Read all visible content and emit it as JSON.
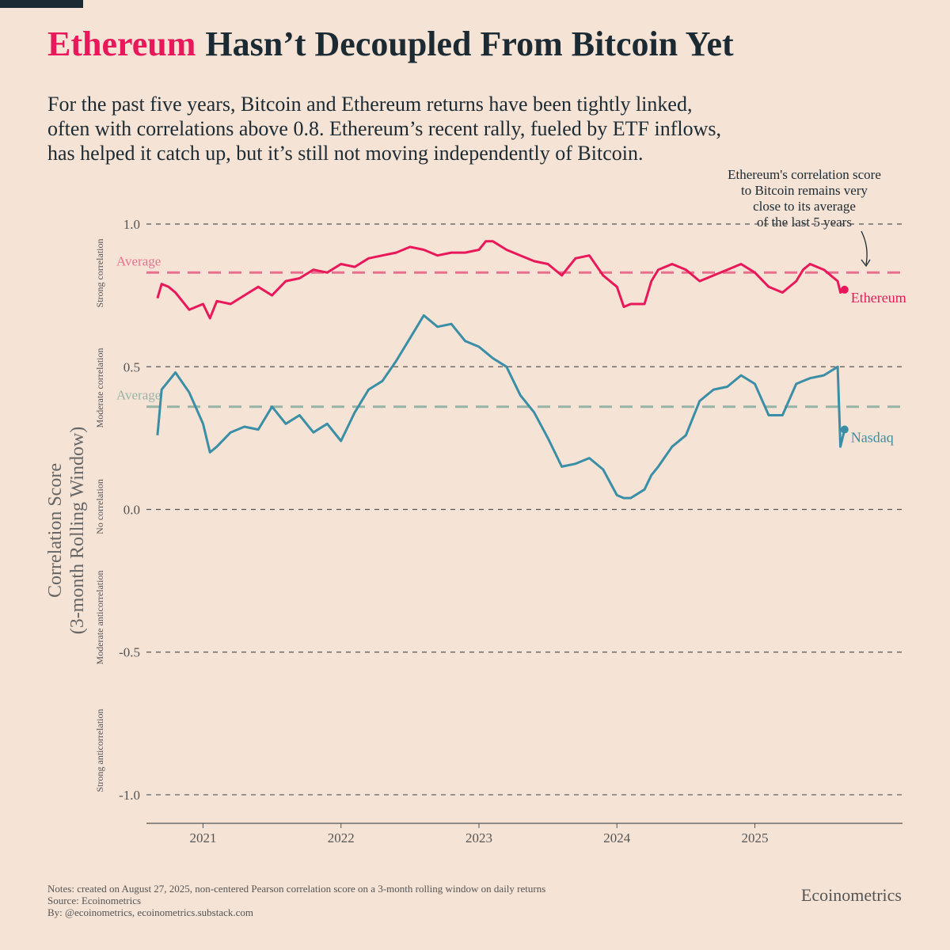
{
  "title_highlight": "Ethereum",
  "title_rest": "Hasn’t Decoupled From Bitcoin Yet",
  "subtitle": [
    "For the past five years, Bitcoin and Ethereum returns have been tightly linked,",
    "often with correlations above 0.8. Ethereum’s recent rally, fueled by ETF inflows,",
    "has helped it catch up, but it’s still not moving independently of Bitcoin."
  ],
  "chart_data": {
    "type": "line",
    "annotation": [
      "Ethereum's correlation score",
      "to Bitcoin remains very",
      "close to its average",
      "of the last 5 years"
    ],
    "y_label": [
      "Correlation Score",
      "(3-month Rolling Window)"
    ],
    "zones": [
      "Strong correlation",
      "Moderate correlation",
      "No correlation",
      "Moderate anticorrelation",
      "Strong anticorrelation"
    ],
    "x": [
      2020.67,
      2020.7,
      2020.75,
      2020.8,
      2020.9,
      2021.0,
      2021.05,
      2021.1,
      2021.2,
      2021.3,
      2021.4,
      2021.5,
      2021.6,
      2021.7,
      2021.8,
      2021.9,
      2022.0,
      2022.1,
      2022.2,
      2022.3,
      2022.4,
      2022.5,
      2022.6,
      2022.7,
      2022.8,
      2022.9,
      2023.0,
      2023.05,
      2023.1,
      2023.2,
      2023.3,
      2023.4,
      2023.5,
      2023.6,
      2023.7,
      2023.8,
      2023.9,
      2024.0,
      2024.05,
      2024.1,
      2024.2,
      2024.25,
      2024.3,
      2024.4,
      2024.5,
      2024.6,
      2024.7,
      2024.8,
      2024.9,
      2025.0,
      2025.1,
      2025.2,
      2025.3,
      2025.35,
      2025.4,
      2025.5,
      2025.6,
      2025.62,
      2025.65
    ],
    "series": [
      {
        "name": "Ethereum",
        "color": "#e8185a",
        "average": 0.83,
        "average_label": "Average",
        "average_color": "#ea6f8f",
        "values": [
          0.74,
          0.79,
          0.78,
          0.76,
          0.7,
          0.72,
          0.67,
          0.73,
          0.72,
          0.75,
          0.78,
          0.75,
          0.8,
          0.81,
          0.84,
          0.83,
          0.86,
          0.85,
          0.88,
          0.89,
          0.9,
          0.92,
          0.91,
          0.89,
          0.9,
          0.9,
          0.91,
          0.94,
          0.94,
          0.91,
          0.89,
          0.87,
          0.86,
          0.82,
          0.88,
          0.89,
          0.82,
          0.78,
          0.71,
          0.72,
          0.72,
          0.8,
          0.84,
          0.86,
          0.84,
          0.8,
          0.82,
          0.84,
          0.86,
          0.83,
          0.78,
          0.76,
          0.8,
          0.84,
          0.86,
          0.84,
          0.8,
          0.76,
          0.77
        ]
      },
      {
        "name": "Nasdaq",
        "color": "#3a8ea6",
        "average": 0.36,
        "average_label": "Average",
        "average_color": "#96b4a6",
        "values": [
          0.26,
          0.42,
          0.45,
          0.48,
          0.41,
          0.3,
          0.2,
          0.22,
          0.27,
          0.29,
          0.28,
          0.36,
          0.3,
          0.33,
          0.27,
          0.3,
          0.24,
          0.34,
          0.42,
          0.45,
          0.52,
          0.6,
          0.68,
          0.64,
          0.65,
          0.59,
          0.57,
          0.55,
          0.53,
          0.5,
          0.4,
          0.34,
          0.25,
          0.15,
          0.16,
          0.18,
          0.14,
          0.05,
          0.04,
          0.04,
          0.07,
          0.12,
          0.15,
          0.22,
          0.26,
          0.38,
          0.42,
          0.43,
          0.47,
          0.44,
          0.33,
          0.33,
          0.44,
          0.45,
          0.46,
          0.47,
          0.5,
          0.22,
          0.28
        ]
      }
    ],
    "xlim": [
      2020.59,
      2026.07
    ],
    "xticks": [
      2021,
      2022,
      2023,
      2024,
      2025
    ],
    "ylim": [
      -1.1,
      1.05
    ],
    "yticks": [
      {
        "value": 1.0,
        "label": "1.0"
      },
      {
        "value": 0.5,
        "label": "0.5"
      },
      {
        "value": 0.0,
        "label": "0.0"
      },
      {
        "value": -0.5,
        "label": "-0.5"
      },
      {
        "value": -1.0,
        "label": "-1.0"
      }
    ],
    "grid": true
  },
  "notes": [
    "Notes: created on August 27, 2025, non-centered Pearson correlation score on a 3-month rolling window on daily returns",
    "Source: Ecoinometrics",
    "By: @ecoinometrics, ecoinometrics.substack.com"
  ],
  "brand": "Ecoinometrics"
}
